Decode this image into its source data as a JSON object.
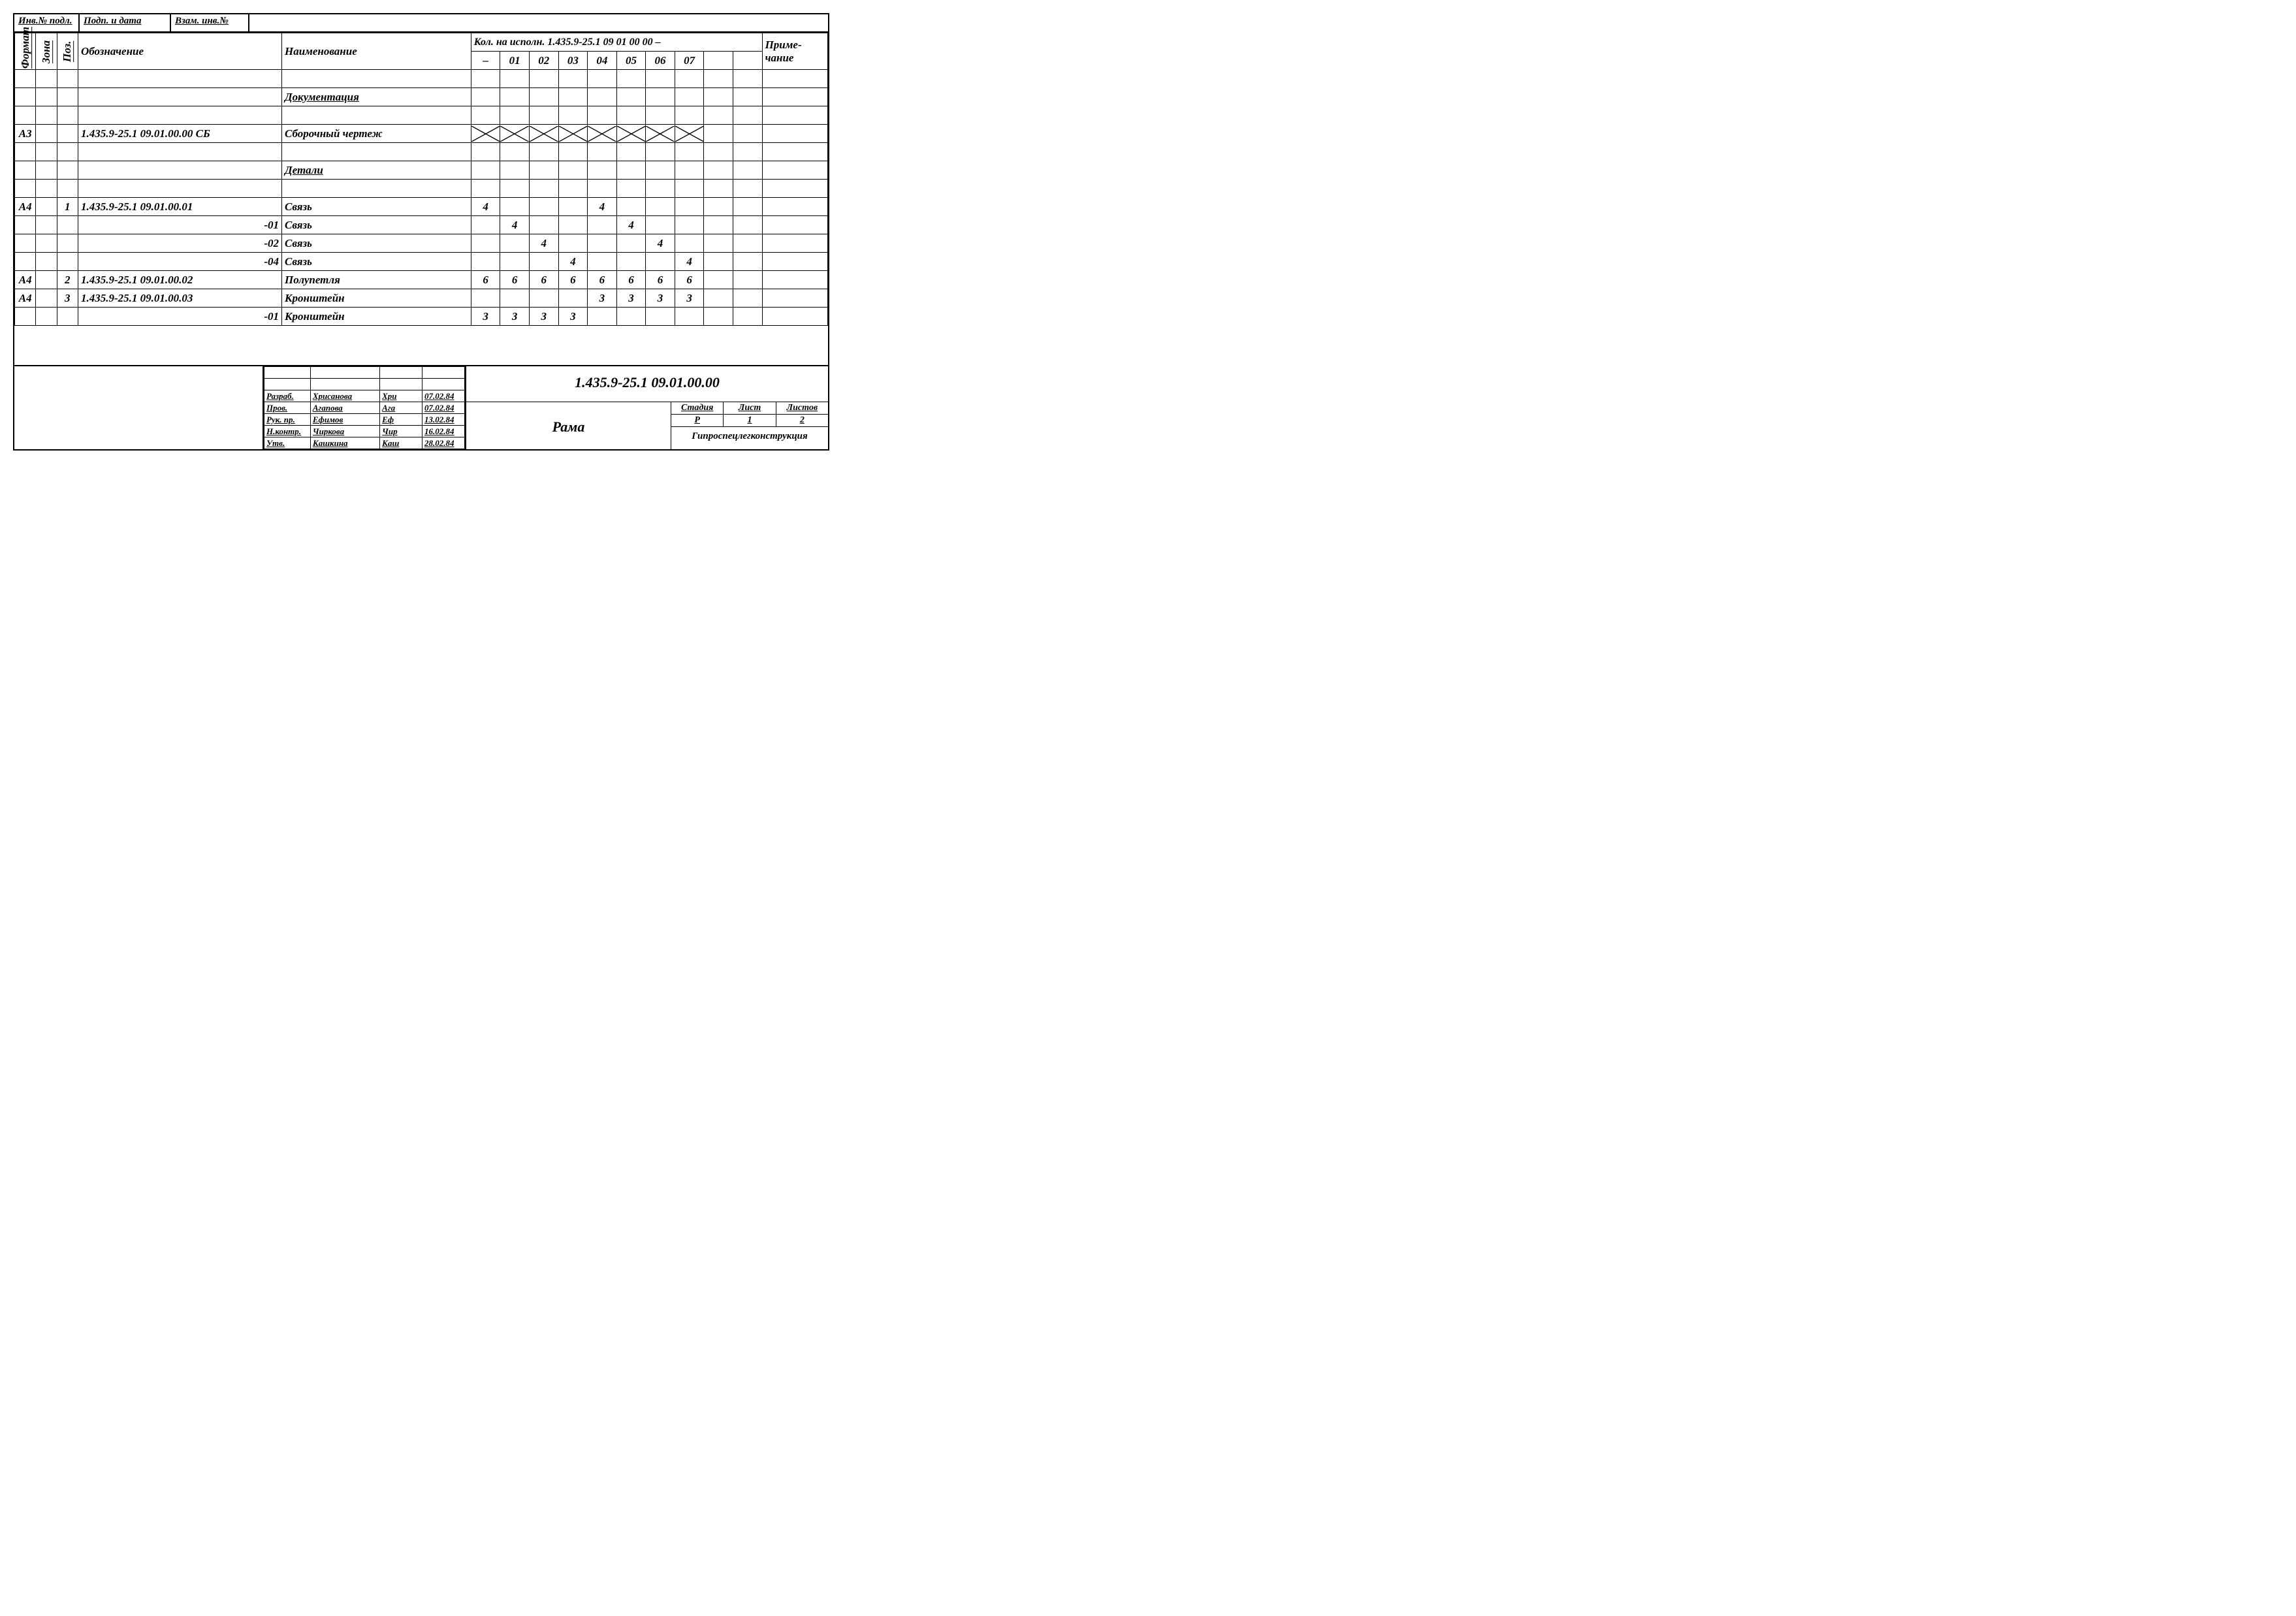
{
  "top_tabs": {
    "t1": "Инв.№ подл.",
    "t2": "Подп. и дата",
    "t3": "Взам. инв.№"
  },
  "headers": {
    "format": "Формат",
    "zona": "Зона",
    "poz": "Поз.",
    "oboz": "Обозначение",
    "naim": "Наименование",
    "kol_span": "Кол. на исполн. 1.435.9-25.1 09 01 00 00 –",
    "prim": "Приме-\nчание",
    "kol_sub": [
      "–",
      "01",
      "02",
      "03",
      "04",
      "05",
      "06",
      "07",
      "",
      ""
    ]
  },
  "rows": [
    {
      "fmt": "",
      "zona": "",
      "poz": "",
      "oboz": "",
      "naim": "",
      "k": [
        "",
        "",
        "",
        "",
        "",
        "",
        "",
        "",
        "",
        ""
      ],
      "prim": "",
      "style": ""
    },
    {
      "fmt": "",
      "zona": "",
      "poz": "",
      "oboz": "",
      "naim": "Документация",
      "k": [
        "",
        "",
        "",
        "",
        "",
        "",
        "",
        "",
        "",
        ""
      ],
      "prim": "",
      "style": "section"
    },
    {
      "fmt": "",
      "zona": "",
      "poz": "",
      "oboz": "",
      "naim": "",
      "k": [
        "",
        "",
        "",
        "",
        "",
        "",
        "",
        "",
        "",
        ""
      ],
      "prim": "",
      "style": ""
    },
    {
      "fmt": "А3",
      "zona": "",
      "poz": "",
      "oboz": "1.435.9-25.1  09.01.00.00 СБ",
      "naim": "Сборочный чертеж",
      "k": [
        "X",
        "X",
        "X",
        "X",
        "X",
        "X",
        "X",
        "X",
        "",
        ""
      ],
      "prim": "",
      "style": "xrow"
    },
    {
      "fmt": "",
      "zona": "",
      "poz": "",
      "oboz": "",
      "naim": "",
      "k": [
        "",
        "",
        "",
        "",
        "",
        "",
        "",
        "",
        "",
        ""
      ],
      "prim": "",
      "style": ""
    },
    {
      "fmt": "",
      "zona": "",
      "poz": "",
      "oboz": "",
      "naim": "Детали",
      "k": [
        "",
        "",
        "",
        "",
        "",
        "",
        "",
        "",
        "",
        ""
      ],
      "prim": "",
      "style": "section"
    },
    {
      "fmt": "",
      "zona": "",
      "poz": "",
      "oboz": "",
      "naim": "",
      "k": [
        "",
        "",
        "",
        "",
        "",
        "",
        "",
        "",
        "",
        ""
      ],
      "prim": "",
      "style": ""
    },
    {
      "fmt": "А4",
      "zona": "",
      "poz": "1",
      "oboz": "1.435.9-25.1  09.01.00.01",
      "naim": "Связь",
      "k": [
        "4",
        "",
        "",
        "",
        "4",
        "",
        "",
        "",
        "",
        ""
      ],
      "prim": "",
      "style": ""
    },
    {
      "fmt": "",
      "zona": "",
      "poz": "",
      "oboz": "-01",
      "naim": "Связь",
      "k": [
        "",
        "4",
        "",
        "",
        "",
        "4",
        "",
        "",
        "",
        ""
      ],
      "prim": "",
      "style": "right-oboz"
    },
    {
      "fmt": "",
      "zona": "",
      "poz": "",
      "oboz": "-02",
      "naim": "Связь",
      "k": [
        "",
        "",
        "4",
        "",
        "",
        "",
        "4",
        "",
        "",
        ""
      ],
      "prim": "",
      "style": "right-oboz"
    },
    {
      "fmt": "",
      "zona": "",
      "poz": "",
      "oboz": "-04",
      "naim": "Связь",
      "k": [
        "",
        "",
        "",
        "4",
        "",
        "",
        "",
        "4",
        "",
        ""
      ],
      "prim": "",
      "style": "right-oboz"
    },
    {
      "fmt": "А4",
      "zona": "",
      "poz": "2",
      "oboz": "1.435.9-25.1  09.01.00.02",
      "naim": "Полупетля",
      "k": [
        "6",
        "6",
        "6",
        "6",
        "6",
        "6",
        "6",
        "6",
        "",
        ""
      ],
      "prim": "",
      "style": ""
    },
    {
      "fmt": "А4",
      "zona": "",
      "poz": "3",
      "oboz": "1.435.9-25.1  09.01.00.03",
      "naim": "Кронштейн",
      "k": [
        "",
        "",
        "",
        "",
        "3",
        "3",
        "3",
        "3",
        "",
        ""
      ],
      "prim": "",
      "style": ""
    },
    {
      "fmt": "",
      "zona": "",
      "poz": "",
      "oboz": "-01",
      "naim": "Кронштейн",
      "k": [
        "3",
        "3",
        "3",
        "3",
        "",
        "",
        "",
        "",
        "",
        ""
      ],
      "prim": "",
      "style": "right-oboz"
    }
  ],
  "title_block": {
    "doc_number": "1.435.9-25.1  09.01.00.00",
    "name": "Рама",
    "sign_rows": [
      {
        "role": "",
        "name": "",
        "sig": "",
        "date": ""
      },
      {
        "role": "",
        "name": "",
        "sig": "",
        "date": ""
      },
      {
        "role": "Разраб.",
        "name": "Хрисанова",
        "sig": "Хри",
        "date": "07.02.84"
      },
      {
        "role": "Пров.",
        "name": "Агапова",
        "sig": "Ага",
        "date": "07.02.84"
      },
      {
        "role": "Рук. пр.",
        "name": "Ефимов",
        "sig": "Еф",
        "date": "13.02.84"
      },
      {
        "role": "Н.контр.",
        "name": "Чиркова",
        "sig": "Чир",
        "date": "16.02.84"
      },
      {
        "role": "Утв.",
        "name": "Кашкина",
        "sig": "Каш",
        "date": "28.02.84"
      }
    ],
    "meta_head": [
      "Стадия",
      "Лист",
      "Листов"
    ],
    "meta_val": [
      "Р",
      "1",
      "2"
    ],
    "org": "Гипроспецлегконструкция"
  },
  "colors": {
    "line": "#000000",
    "bg": "#ffffff"
  }
}
